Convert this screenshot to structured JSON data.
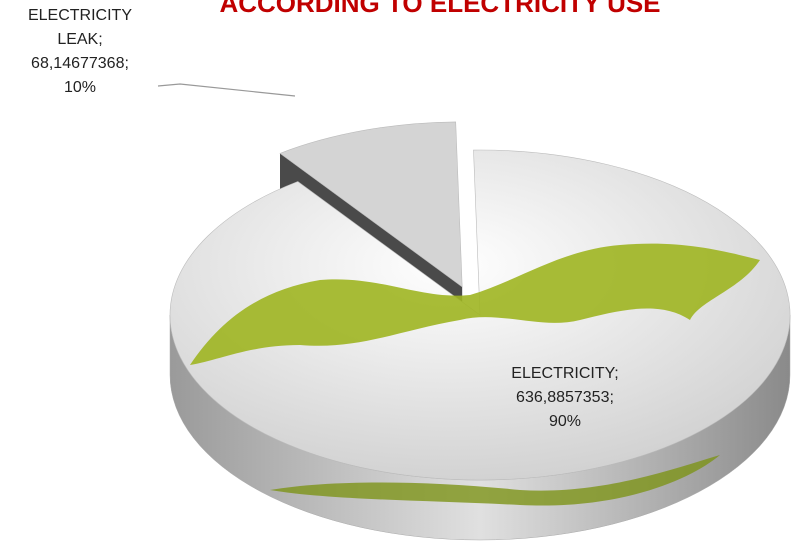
{
  "chart_data": {
    "type": "pie",
    "title": "ACCORDING TO ELECTRICITY USE",
    "categories": [
      "ELECTRICITY LEAK",
      "ELECTRICITY"
    ],
    "values": [
      68.14677368,
      636.8857353
    ],
    "value_labels": [
      "68,14677368",
      "636,8857353"
    ],
    "percents": [
      10,
      90
    ],
    "percent_labels": [
      "10%",
      "90%"
    ],
    "label_separator": ";",
    "colors": [
      "#d4d4d4",
      "#ececec"
    ],
    "exploded": [
      true,
      false
    ],
    "start_angle": 324
  }
}
